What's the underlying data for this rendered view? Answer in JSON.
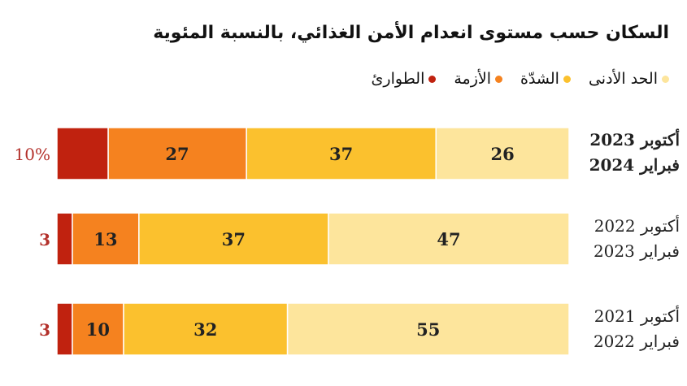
{
  "chart_data": {
    "type": "bar",
    "orientation": "horizontal-stacked",
    "subtitle": "السكان حسب مستوى انعدام الأمن الغذائي، بالنسبة المئوية",
    "categories": [
      [
        "أكتوبر 2023",
        "فبراير 2024"
      ],
      [
        "أكتوبر 2022",
        "فبراير 2023"
      ],
      [
        "أكتوبر 2021",
        "فبراير 2022"
      ]
    ],
    "series": [
      {
        "name": "الحد الأدنى",
        "color": "#fde59c",
        "values": [
          26,
          47,
          55
        ]
      },
      {
        "name": "الشدّة",
        "color": "#fbc12e",
        "values": [
          37,
          37,
          32
        ]
      },
      {
        "name": "الأزمة",
        "color": "#f5821f",
        "values": [
          27,
          13,
          10
        ]
      },
      {
        "name": "الطوارئ",
        "color": "#c0220f",
        "values": [
          10,
          3,
          3
        ]
      }
    ],
    "emergency_labels": [
      "10%",
      "3",
      "3"
    ],
    "emergency_label_color": "#b3302a",
    "xlim": [
      0,
      100
    ],
    "legend": "top-right",
    "grid": false
  }
}
